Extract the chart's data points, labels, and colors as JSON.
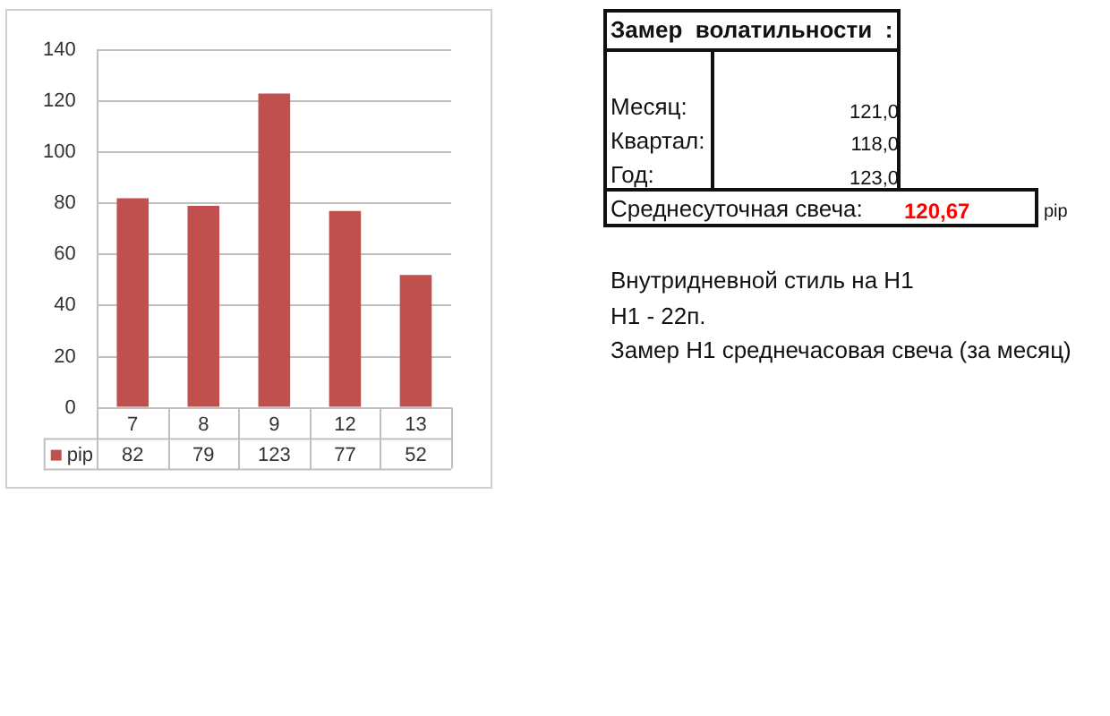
{
  "chart_data": {
    "type": "bar",
    "categories": [
      "7",
      "8",
      "9",
      "12",
      "13"
    ],
    "series": [
      {
        "name": "pip",
        "color": "#c0504d",
        "values": [
          82,
          79,
          123,
          77,
          52
        ]
      }
    ],
    "ylim": [
      0,
      140
    ],
    "yticks": [
      0,
      20,
      40,
      60,
      80,
      100,
      120,
      140
    ],
    "grid": "y",
    "legend": "bottom",
    "data_labels": true,
    "annotations": [
      "Замер  волатильности  :",
      "Месяц:",
      "121,0",
      "Квартал:",
      "118,0",
      "Год:",
      "123,0",
      "Среднесуточная свеча:",
      "120,67",
      "pip",
      "Внутридневной стиль на H1",
      "H1 - 22п.",
      "Замер H1 среднечасовая свеча (за месяц)"
    ]
  }
}
